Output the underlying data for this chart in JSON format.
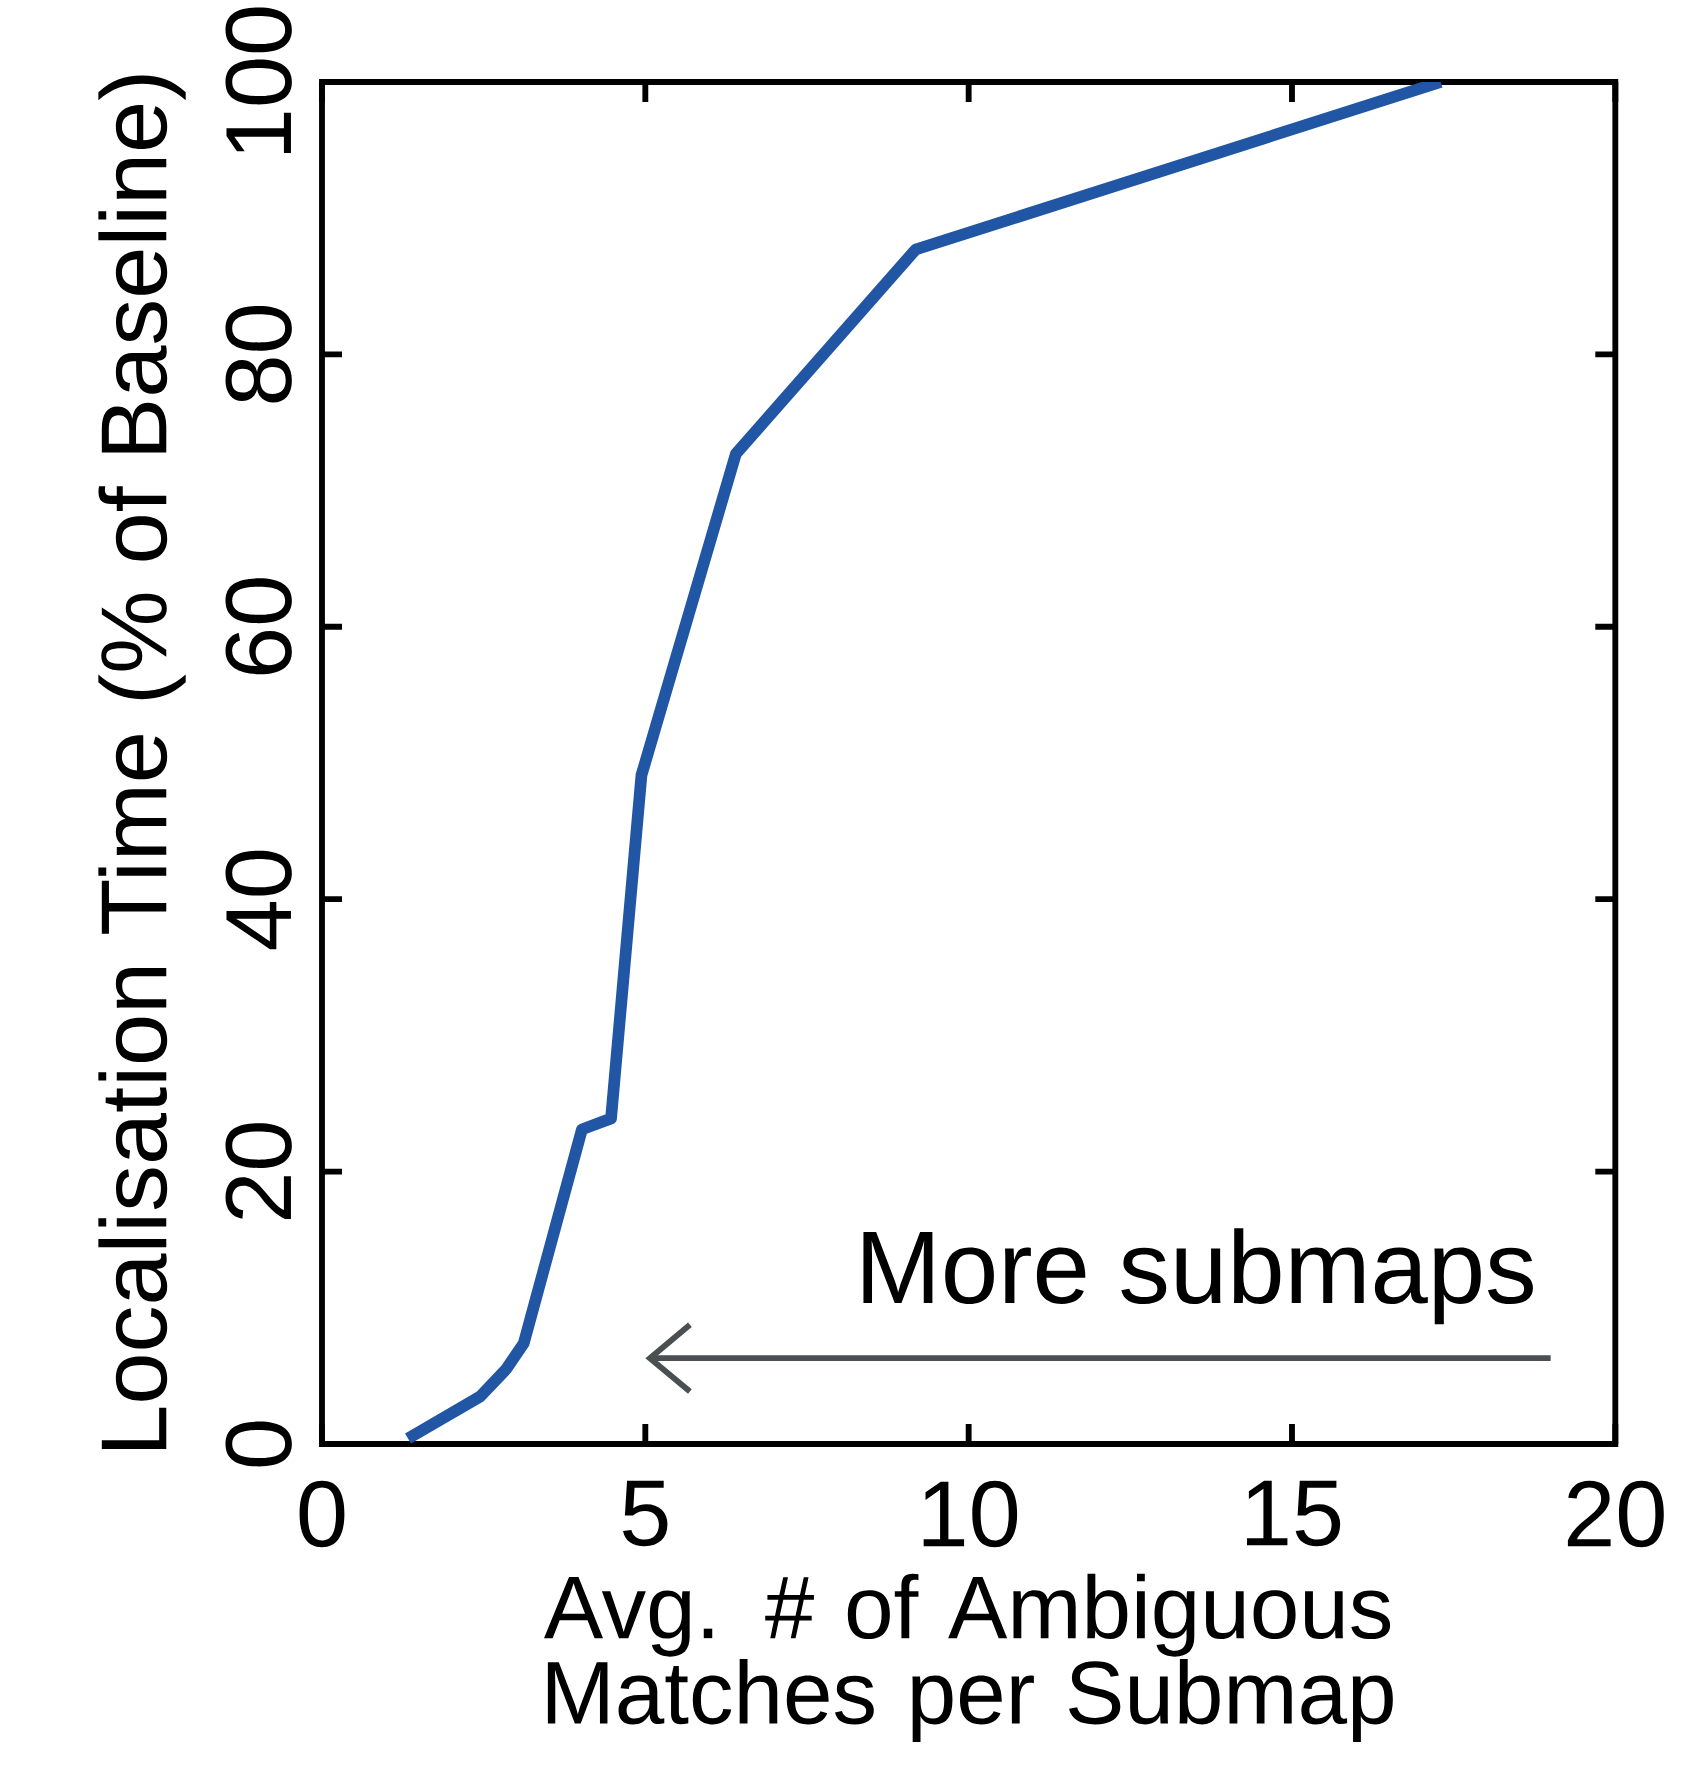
{
  "chart_data": {
    "type": "line",
    "xlabel": "Avg. # of Ambiguous Matches per Submap",
    "ylabel": "Localisation Time (% of Baseline)",
    "annotations": [
      "More submaps"
    ],
    "x": [
      1.33,
      2.45,
      2.85,
      3.12,
      4.02,
      4.47,
      4.94,
      6.4,
      9.18,
      17.3
    ],
    "values": [
      0.4,
      3.5,
      5.5,
      7.4,
      23.1,
      23.9,
      49.1,
      72.7,
      87.7,
      100
    ],
    "color": "#2156a5",
    "xlim": [
      0,
      20
    ],
    "ylim": [
      0,
      100
    ],
    "xticks": [
      0,
      5,
      10,
      15,
      20
    ],
    "yticks": [
      0,
      20,
      40,
      60,
      80,
      100
    ]
  }
}
